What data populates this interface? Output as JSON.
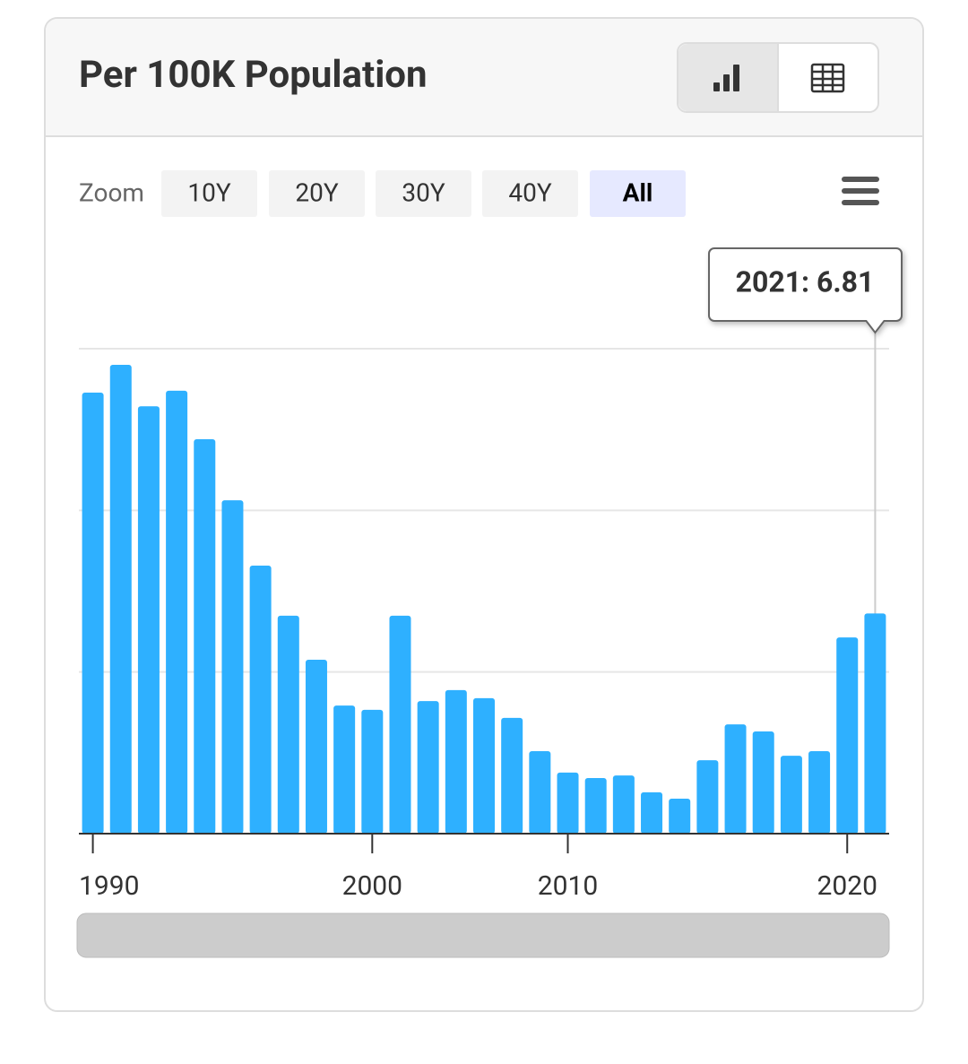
{
  "header": {
    "title": "Per 100K Population"
  },
  "zoom": {
    "label": "Zoom",
    "buttons": [
      "10Y",
      "20Y",
      "30Y",
      "40Y",
      "All"
    ],
    "active": 4
  },
  "chart_data": {
    "type": "bar",
    "categories": [
      "1990",
      null,
      null,
      null,
      null,
      null,
      null,
      null,
      null,
      null,
      "2000",
      null,
      null,
      null,
      null,
      null,
      null,
      "2010",
      null,
      null,
      null,
      null,
      null,
      null,
      null,
      null,
      null,
      "2020",
      null
    ],
    "values": [
      13.64,
      14.5,
      13.22,
      13.7,
      12.2,
      10.31,
      8.29,
      6.74,
      5.38,
      3.96,
      3.83,
      6.74,
      4.1,
      4.44,
      4.19,
      3.58,
      2.55,
      1.89,
      1.72,
      1.8,
      1.28,
      1.08,
      2.27,
      3.38,
      3.16,
      2.41,
      2.55,
      6.07,
      6.81
    ],
    "color": "#2eb0ff",
    "ylim": [
      0,
      15
    ],
    "yticks": [
      5,
      10,
      15
    ],
    "grid": true,
    "tooltip": {
      "text": "2021: 6.81",
      "index": 28
    }
  }
}
